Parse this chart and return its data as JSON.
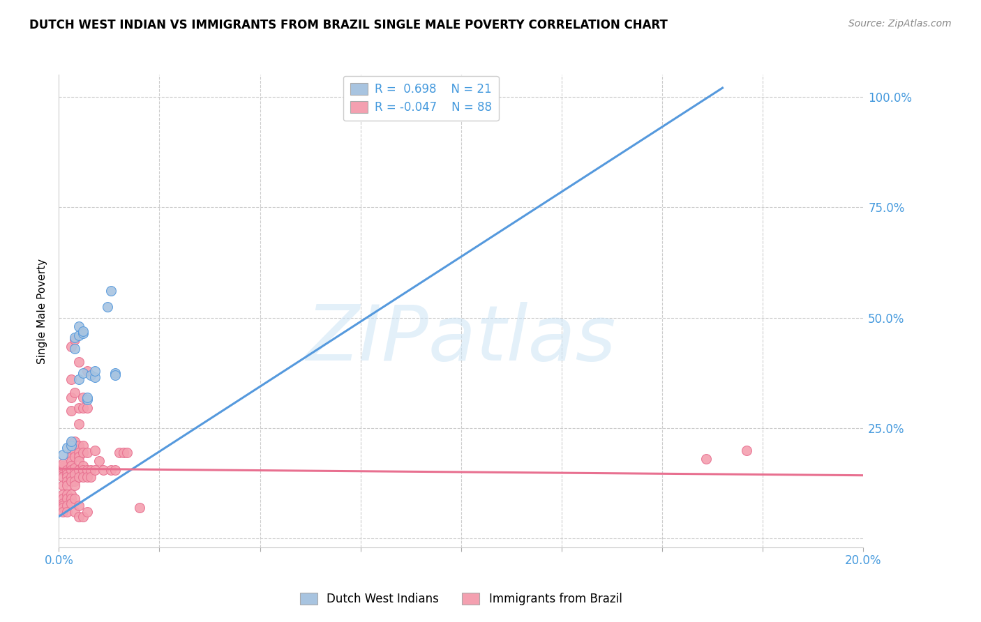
{
  "title": "DUTCH WEST INDIAN VS IMMIGRANTS FROM BRAZIL SINGLE MALE POVERTY CORRELATION CHART",
  "source": "Source: ZipAtlas.com",
  "ylabel": "Single Male Poverty",
  "ytick_labels": [
    "",
    "25.0%",
    "50.0%",
    "75.0%",
    "100.0%"
  ],
  "ytick_values": [
    0.0,
    0.25,
    0.5,
    0.75,
    1.0
  ],
  "xtick_labels_bottom": [
    "0.0%",
    "",
    "",
    "",
    "",
    "",
    "",
    "",
    "20.0%"
  ],
  "xlim": [
    0.0,
    0.2
  ],
  "ylim": [
    -0.02,
    1.05
  ],
  "color_blue": "#a8c4e0",
  "color_pink": "#f4a0b0",
  "color_blue_line": "#5599dd",
  "color_pink_line": "#e87090",
  "color_blue_text": "#4499dd",
  "watermark_text": "ZIPatlas",
  "legend1_label": "Dutch West Indians",
  "legend2_label": "Immigrants from Brazil",
  "blue_points": [
    [
      0.001,
      0.19
    ],
    [
      0.002,
      0.205
    ],
    [
      0.003,
      0.21
    ],
    [
      0.003,
      0.22
    ],
    [
      0.004,
      0.43
    ],
    [
      0.004,
      0.455
    ],
    [
      0.005,
      0.36
    ],
    [
      0.005,
      0.46
    ],
    [
      0.005,
      0.48
    ],
    [
      0.006,
      0.375
    ],
    [
      0.006,
      0.465
    ],
    [
      0.006,
      0.47
    ],
    [
      0.007,
      0.315
    ],
    [
      0.007,
      0.32
    ],
    [
      0.008,
      0.37
    ],
    [
      0.009,
      0.365
    ],
    [
      0.009,
      0.38
    ],
    [
      0.012,
      0.525
    ],
    [
      0.013,
      0.56
    ],
    [
      0.014,
      0.375
    ],
    [
      0.014,
      0.37
    ]
  ],
  "pink_points": [
    [
      0.001,
      0.155
    ],
    [
      0.001,
      0.16
    ],
    [
      0.001,
      0.165
    ],
    [
      0.001,
      0.17
    ],
    [
      0.001,
      0.14
    ],
    [
      0.001,
      0.12
    ],
    [
      0.001,
      0.1
    ],
    [
      0.001,
      0.09
    ],
    [
      0.001,
      0.08
    ],
    [
      0.001,
      0.075
    ],
    [
      0.001,
      0.07
    ],
    [
      0.001,
      0.06
    ],
    [
      0.002,
      0.155
    ],
    [
      0.002,
      0.145
    ],
    [
      0.002,
      0.14
    ],
    [
      0.002,
      0.13
    ],
    [
      0.002,
      0.12
    ],
    [
      0.002,
      0.1
    ],
    [
      0.002,
      0.09
    ],
    [
      0.002,
      0.075
    ],
    [
      0.002,
      0.06
    ],
    [
      0.003,
      0.435
    ],
    [
      0.003,
      0.36
    ],
    [
      0.003,
      0.32
    ],
    [
      0.003,
      0.29
    ],
    [
      0.003,
      0.215
    ],
    [
      0.003,
      0.21
    ],
    [
      0.003,
      0.195
    ],
    [
      0.003,
      0.185
    ],
    [
      0.003,
      0.175
    ],
    [
      0.003,
      0.165
    ],
    [
      0.003,
      0.155
    ],
    [
      0.003,
      0.14
    ],
    [
      0.003,
      0.13
    ],
    [
      0.003,
      0.1
    ],
    [
      0.003,
      0.09
    ],
    [
      0.003,
      0.08
    ],
    [
      0.004,
      0.45
    ],
    [
      0.004,
      0.33
    ],
    [
      0.004,
      0.22
    ],
    [
      0.004,
      0.21
    ],
    [
      0.004,
      0.195
    ],
    [
      0.004,
      0.185
    ],
    [
      0.004,
      0.16
    ],
    [
      0.004,
      0.145
    ],
    [
      0.004,
      0.13
    ],
    [
      0.004,
      0.12
    ],
    [
      0.004,
      0.09
    ],
    [
      0.004,
      0.06
    ],
    [
      0.005,
      0.4
    ],
    [
      0.005,
      0.295
    ],
    [
      0.005,
      0.26
    ],
    [
      0.005,
      0.21
    ],
    [
      0.005,
      0.195
    ],
    [
      0.005,
      0.185
    ],
    [
      0.005,
      0.175
    ],
    [
      0.005,
      0.155
    ],
    [
      0.005,
      0.14
    ],
    [
      0.005,
      0.075
    ],
    [
      0.005,
      0.05
    ],
    [
      0.006,
      0.32
    ],
    [
      0.006,
      0.295
    ],
    [
      0.006,
      0.21
    ],
    [
      0.006,
      0.195
    ],
    [
      0.006,
      0.165
    ],
    [
      0.006,
      0.155
    ],
    [
      0.006,
      0.14
    ],
    [
      0.006,
      0.05
    ],
    [
      0.007,
      0.38
    ],
    [
      0.007,
      0.295
    ],
    [
      0.007,
      0.195
    ],
    [
      0.007,
      0.155
    ],
    [
      0.007,
      0.14
    ],
    [
      0.007,
      0.06
    ],
    [
      0.008,
      0.155
    ],
    [
      0.008,
      0.14
    ],
    [
      0.009,
      0.2
    ],
    [
      0.009,
      0.155
    ],
    [
      0.01,
      0.175
    ],
    [
      0.011,
      0.155
    ],
    [
      0.013,
      0.155
    ],
    [
      0.014,
      0.155
    ],
    [
      0.015,
      0.195
    ],
    [
      0.016,
      0.195
    ],
    [
      0.017,
      0.195
    ],
    [
      0.02,
      0.07
    ],
    [
      0.161,
      0.18
    ],
    [
      0.171,
      0.2
    ]
  ],
  "blue_line_x": [
    0.0,
    0.165
  ],
  "blue_line_y": [
    0.05,
    1.02
  ],
  "pink_line_x": [
    0.0,
    0.2
  ],
  "pink_line_y": [
    0.158,
    0.143
  ]
}
